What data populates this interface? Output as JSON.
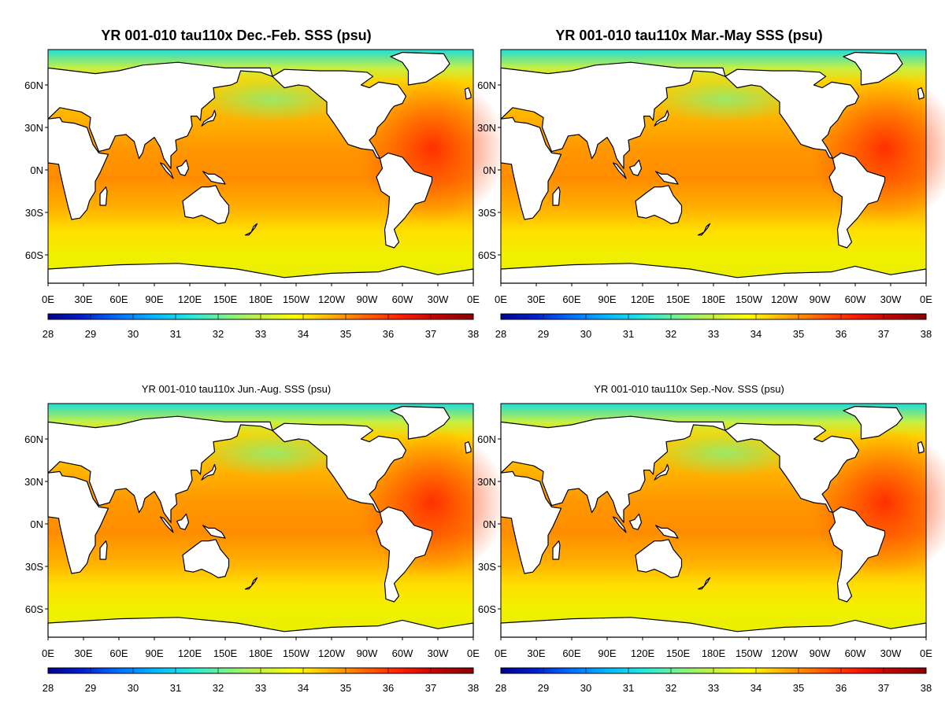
{
  "figure": {
    "colorbar": {
      "ticks": [
        "28",
        "29",
        "30",
        "31",
        "32",
        "33",
        "34",
        "35",
        "36",
        "37",
        "38"
      ],
      "colors": [
        "#00008f",
        "#0020d0",
        "#0070ff",
        "#00b8ff",
        "#20e8e0",
        "#7cf08c",
        "#c8f040",
        "#ffff00",
        "#ffb000",
        "#ff6000",
        "#ff1a00",
        "#c00000",
        "#8b0000"
      ]
    },
    "lon_ticks": [
      "0E",
      "30E",
      "60E",
      "90E",
      "120E",
      "150E",
      "180E",
      "150W",
      "120W",
      "90W",
      "60W",
      "30W",
      "0E"
    ],
    "lat_ticks": [
      "60N",
      "30N",
      "0N",
      "30S",
      "60S"
    ],
    "panels": [
      {
        "title": "YR 001-010 tau110x Dec.-Feb. SSS (psu)",
        "bold": true
      },
      {
        "title": "YR 001-010 tau110x Mar.-May SSS (psu)",
        "bold": true
      },
      {
        "title": "YR 001-010 tau110x Jun.-Aug. SSS (psu)",
        "bold": false
      },
      {
        "title": "YR 001-010 tau110x Sep.-Nov. SSS (psu)",
        "bold": false
      }
    ]
  }
}
